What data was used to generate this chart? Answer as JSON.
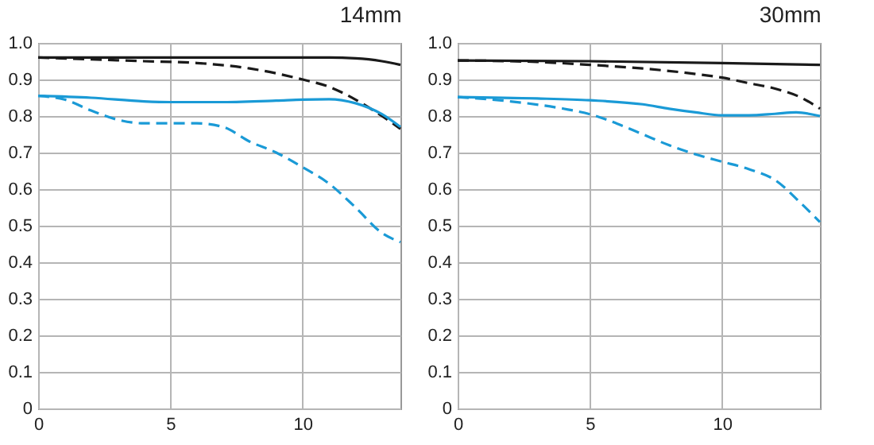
{
  "chart_data": [
    {
      "type": "line",
      "title": "14mm",
      "xlim": [
        0,
        13.7
      ],
      "ylim": [
        0,
        1
      ],
      "xticks": [
        0,
        5,
        10
      ],
      "yticks": [
        0,
        0.1,
        0.2,
        0.3,
        0.4,
        0.5,
        0.6,
        0.7,
        0.8,
        0.9,
        {
          "value": 1,
          "label": "1.0"
        }
      ],
      "grid": true,
      "legend": false,
      "marker": "none",
      "series": [
        {
          "color": "#1a1a1a",
          "line_style": "solid",
          "x": [
            0,
            4,
            8,
            11,
            12,
            12.5,
            13,
            13.7
          ],
          "values": [
            0.96,
            0.96,
            0.96,
            0.96,
            0.958,
            0.955,
            0.95,
            0.94
          ]
        },
        {
          "color": "#1a1a1a",
          "line_style": "dashed",
          "x": [
            0,
            2,
            4,
            6,
            8,
            10,
            11,
            12,
            13,
            13.7
          ],
          "values": [
            0.96,
            0.955,
            0.95,
            0.945,
            0.93,
            0.9,
            0.88,
            0.845,
            0.8,
            0.765
          ]
        },
        {
          "color": "#1a9ad6",
          "line_style": "solid",
          "x": [
            0,
            2,
            4,
            5,
            7,
            9,
            10,
            11,
            12,
            13,
            13.7
          ],
          "values": [
            0.855,
            0.85,
            0.84,
            0.838,
            0.838,
            0.842,
            0.845,
            0.846,
            0.835,
            0.805,
            0.77
          ]
        },
        {
          "color": "#1a9ad6",
          "line_style": "dashed",
          "x": [
            0,
            1,
            2,
            3,
            4,
            5,
            6,
            7,
            8,
            9,
            10,
            11,
            12,
            13,
            13.7
          ],
          "values": [
            0.855,
            0.845,
            0.815,
            0.79,
            0.78,
            0.78,
            0.78,
            0.77,
            0.73,
            0.7,
            0.66,
            0.615,
            0.55,
            0.48,
            0.455
          ]
        }
      ]
    },
    {
      "type": "line",
      "title": "30mm",
      "xlim": [
        0,
        13.7
      ],
      "ylim": [
        0,
        1
      ],
      "xticks": [
        0,
        5,
        10
      ],
      "yticks": [
        0,
        0.1,
        0.2,
        0.3,
        0.4,
        0.5,
        0.6,
        0.7,
        0.8,
        0.9,
        {
          "value": 1,
          "label": "1.0"
        }
      ],
      "grid": true,
      "legend": false,
      "marker": "none",
      "series": [
        {
          "color": "#1a1a1a",
          "line_style": "solid",
          "x": [
            0,
            5,
            10,
            13.7
          ],
          "values": [
            0.952,
            0.95,
            0.945,
            0.94
          ]
        },
        {
          "color": "#1a1a1a",
          "line_style": "dashed",
          "x": [
            0,
            3,
            5,
            7,
            9,
            10,
            11,
            12,
            13,
            13.7
          ],
          "values": [
            0.952,
            0.948,
            0.94,
            0.93,
            0.915,
            0.905,
            0.89,
            0.875,
            0.85,
            0.82
          ]
        },
        {
          "color": "#1a9ad6",
          "line_style": "solid",
          "x": [
            0,
            3,
            5,
            7,
            8,
            9,
            10,
            11,
            12,
            12.8,
            13.7
          ],
          "values": [
            0.852,
            0.848,
            0.843,
            0.832,
            0.82,
            0.81,
            0.802,
            0.802,
            0.806,
            0.81,
            0.8
          ]
        },
        {
          "color": "#1a9ad6",
          "line_style": "dashed",
          "x": [
            0,
            2,
            4,
            5,
            6,
            7,
            8,
            9,
            10,
            11,
            12,
            13,
            13.7
          ],
          "values": [
            0.852,
            0.84,
            0.82,
            0.805,
            0.78,
            0.75,
            0.72,
            0.695,
            0.675,
            0.655,
            0.625,
            0.56,
            0.51
          ]
        }
      ]
    }
  ]
}
